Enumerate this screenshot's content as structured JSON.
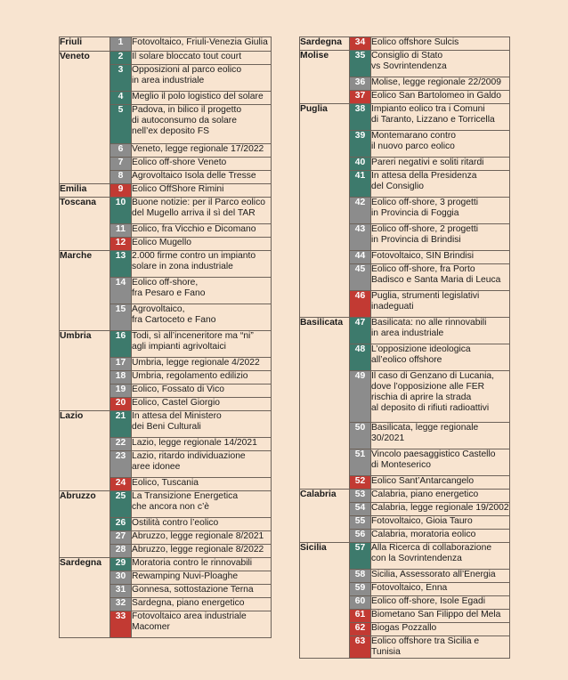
{
  "colors": {
    "background": "#f8e4d0",
    "green": "#3d7a6c",
    "gray": "#8c8c8c",
    "red": "#c23a33"
  },
  "columns": [
    [
      {
        "region": "Friuli",
        "items": [
          {
            "n": "1",
            "text": "Fotovoltaico, Friuli-Venezia Giulia",
            "color": "gray"
          }
        ]
      },
      {
        "region": "Veneto",
        "items": [
          {
            "n": "2",
            "text": "Il solare bloccato tout court",
            "color": "green"
          },
          {
            "n": "3",
            "text": "Opposizioni al parco eolico\nin area industriale",
            "color": "green"
          },
          {
            "n": "4",
            "text": "Meglio il polo logistico del solare",
            "color": "green"
          },
          {
            "n": "5",
            "text": "Padova, in bilico il progetto\ndi autoconsumo da solare\nnell’ex deposito FS",
            "color": "green"
          },
          {
            "n": "6",
            "text": "Veneto, legge regionale 17/2022",
            "color": "gray"
          },
          {
            "n": "7",
            "text": "Eolico off-shore Veneto",
            "color": "gray"
          },
          {
            "n": "8",
            "text": "Agrovoltaico Isola delle Tresse",
            "color": "gray"
          }
        ]
      },
      {
        "region": "Emilia",
        "items": [
          {
            "n": "9",
            "text": "Eolico OffShore Rimini",
            "color": "red"
          }
        ]
      },
      {
        "region": "Toscana",
        "items": [
          {
            "n": "10",
            "text": "Buone notizie: per il Parco eolico\ndel Mugello arriva il sì del TAR",
            "color": "green"
          },
          {
            "n": "11",
            "text": "Eolico, fra Vicchio e Dicomano",
            "color": "gray"
          },
          {
            "n": "12",
            "text": "Eolico Mugello",
            "color": "red"
          }
        ]
      },
      {
        "region": "Marche",
        "items": [
          {
            "n": "13",
            "text": "2.000 firme contro un impianto\nsolare in zona industriale",
            "color": "green"
          },
          {
            "n": "14",
            "text": "Eolico off-shore,\nfra Pesaro e Fano",
            "color": "gray"
          },
          {
            "n": "15",
            "text": "Agrovoltaico,\nfra Cartoceto e Fano",
            "color": "gray"
          }
        ]
      },
      {
        "region": "Umbria",
        "items": [
          {
            "n": "16",
            "text": "Todi, sì all’inceneritore ma “ni”\nagli impianti agrivoltaici",
            "color": "green"
          },
          {
            "n": "17",
            "text": "Umbria, legge regionale 4/2022",
            "color": "gray"
          },
          {
            "n": "18",
            "text": "Umbria, regolamento edilizio",
            "color": "gray"
          },
          {
            "n": "19",
            "text": "Eolico, Fossato di Vico",
            "color": "gray"
          },
          {
            "n": "20",
            "text": "Eolico, Castel Giorgio",
            "color": "red"
          }
        ]
      },
      {
        "region": "Lazio",
        "items": [
          {
            "n": "21",
            "text": "In attesa del Ministero\ndei Beni Culturali",
            "color": "green"
          },
          {
            "n": "22",
            "text": "Lazio, legge regionale 14/2021",
            "color": "gray"
          },
          {
            "n": "23",
            "text": "Lazio, ritardo individuazione\naree idonee",
            "color": "gray"
          },
          {
            "n": "24",
            "text": "Eolico, Tuscania",
            "color": "red"
          }
        ]
      },
      {
        "region": "Abruzzo",
        "items": [
          {
            "n": "25",
            "text": "La Transizione Energetica\nche ancora non c’è",
            "color": "green"
          },
          {
            "n": "26",
            "text": "Ostilità contro l’eolico",
            "color": "green"
          },
          {
            "n": "27",
            "text": "Abruzzo, legge regionale 8/2021",
            "color": "gray"
          },
          {
            "n": "28",
            "text": "Abruzzo, legge regionale 8/2022",
            "color": "gray"
          }
        ]
      },
      {
        "region": "Sardegna",
        "items": [
          {
            "n": "29",
            "text": "Moratoria contro le rinnovabili",
            "color": "green"
          },
          {
            "n": "30",
            "text": "Rewamping Nuvi-Ploaghe",
            "color": "gray"
          },
          {
            "n": "31",
            "text": "Gonnesa, sottostazione Terna",
            "color": "gray"
          },
          {
            "n": "32",
            "text": "Sardegna, piano energetico",
            "color": "gray"
          },
          {
            "n": "33",
            "text": "Fotovoltaico area industriale\nMacomer",
            "color": "red"
          }
        ]
      }
    ],
    [
      {
        "region": "Sardegna",
        "items": [
          {
            "n": "34",
            "text": "Eolico offshore Sulcis",
            "color": "red"
          }
        ]
      },
      {
        "region": "Molise",
        "items": [
          {
            "n": "35",
            "text": "Consiglio di Stato\nvs Sovrintendenza",
            "color": "green"
          },
          {
            "n": "36",
            "text": "Molise, legge regionale 22/2009",
            "color": "gray"
          },
          {
            "n": "37",
            "text": "Eolico San Bartolomeo in Galdo",
            "color": "red"
          }
        ]
      },
      {
        "region": "Puglia",
        "items": [
          {
            "n": "38",
            "text": "Impianto eolico tra i Comuni\ndi Taranto, Lizzano e Torricella",
            "color": "green"
          },
          {
            "n": "39",
            "text": "Montemarano contro\nil nuovo parco eolico",
            "color": "green"
          },
          {
            "n": "40",
            "text": "Pareri negativi e soliti ritardi",
            "color": "green"
          },
          {
            "n": "41",
            "text": "In attesa della Presidenza\ndel Consiglio",
            "color": "green"
          },
          {
            "n": "42",
            "text": "Eolico off-shore, 3 progetti\nin Provincia di Foggia",
            "color": "gray"
          },
          {
            "n": "43",
            "text": "Eolico off-shore, 2 progetti\nin Provincia di Brindisi",
            "color": "gray"
          },
          {
            "n": "44",
            "text": "Fotovoltaico, SIN Brindisi",
            "color": "gray"
          },
          {
            "n": "45",
            "text": "Eolico off-shore, fra Porto\nBadisco e Santa Maria di Leuca",
            "color": "gray"
          },
          {
            "n": "46",
            "text": "Puglia, strumenti legislativi\ninadeguati",
            "color": "red"
          }
        ]
      },
      {
        "region": "Basilicata",
        "items": [
          {
            "n": "47",
            "text": "Basilicata: no alle rinnovabili\nin area industriale",
            "color": "green"
          },
          {
            "n": "48",
            "text": "L’opposizione ideologica\nall’eolico offshore",
            "color": "green"
          },
          {
            "n": "49",
            "text": "Il caso di Genzano di Lucania,\ndove l’opposizione alle FER\nrischia di aprire la strada\nal deposito di rifiuti radioattivi",
            "color": "gray"
          },
          {
            "n": "50",
            "text": "Basilicata, legge regionale\n30/2021",
            "color": "gray"
          },
          {
            "n": "51",
            "text": "Vincolo paesaggistico Castello\ndi Monteserico",
            "color": "gray"
          },
          {
            "n": "52",
            "text": "Eolico Sant’Antarcangelo",
            "color": "red"
          }
        ]
      },
      {
        "region": "Calabria",
        "items": [
          {
            "n": "53",
            "text": "Calabria, piano energetico",
            "color": "gray"
          },
          {
            "n": "54",
            "text": "Calabria, legge regionale 19/2002",
            "color": "gray"
          },
          {
            "n": "55",
            "text": "Fotovoltaico, Gioia Tauro",
            "color": "gray"
          },
          {
            "n": "56",
            "text": "Calabria, moratoria eolico",
            "color": "gray"
          }
        ]
      },
      {
        "region": "Sicilia",
        "items": [
          {
            "n": "57",
            "text": "Alla Ricerca di collaborazione\ncon la Sovrintendenza",
            "color": "green"
          },
          {
            "n": "58",
            "text": "Sicilia, Assessorato all’Energia",
            "color": "gray"
          },
          {
            "n": "59",
            "text": "Fotovoltaico, Enna",
            "color": "gray"
          },
          {
            "n": "60",
            "text": "Eolico off-shore, Isole Egadi",
            "color": "gray"
          },
          {
            "n": "61",
            "text": "Biometano San Filippo del Mela",
            "color": "red"
          },
          {
            "n": "62",
            "text": "Biogas Pozzallo",
            "color": "red"
          },
          {
            "n": "63",
            "text": "Eolico offshore tra Sicilia e Tunisia",
            "color": "red"
          }
        ]
      }
    ]
  ]
}
